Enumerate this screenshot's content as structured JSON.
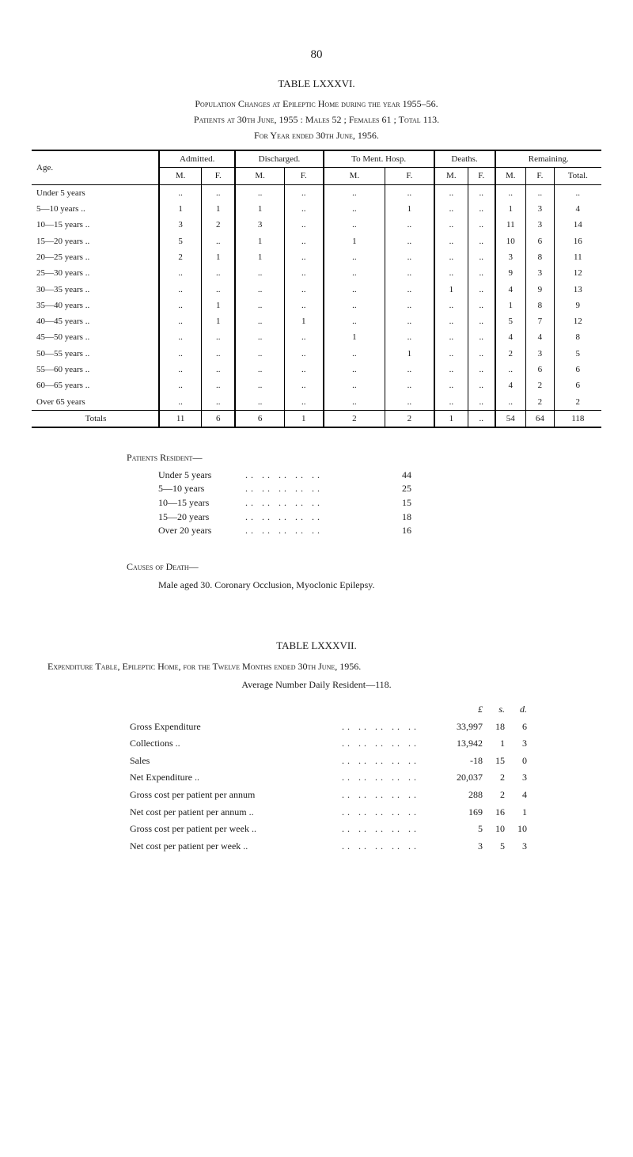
{
  "page_number": "80",
  "table1": {
    "label": "TABLE LXXXVI.",
    "heading1": "Population Changes at Epileptic Home during the year 1955–56.",
    "heading2": "Patients at 30th June, 1955 : Males 52 ; Females 61 ; Total 113.",
    "heading3": "For Year ended 30th June, 1956.",
    "col_age": "Age.",
    "groups": [
      "Admitted.",
      "Discharged.",
      "To Ment. Hosp.",
      "Deaths.",
      "Remaining."
    ],
    "sub": {
      "m": "M.",
      "f": "F.",
      "total": "Total."
    },
    "rows": [
      {
        "age": "Under 5 years",
        "cells": [
          "..",
          "..",
          "..",
          "..",
          "..",
          "..",
          "..",
          "..",
          "..",
          "..",
          ".."
        ]
      },
      {
        "age": "5—10 years ..",
        "cells": [
          "1",
          "1",
          "1",
          "..",
          "..",
          "1",
          "..",
          "..",
          "1",
          "3",
          "4"
        ]
      },
      {
        "age": "10—15 years ..",
        "cells": [
          "3",
          "2",
          "3",
          "..",
          "..",
          "..",
          "..",
          "..",
          "11",
          "3",
          "14"
        ]
      },
      {
        "age": "15—20 years ..",
        "cells": [
          "5",
          "..",
          "1",
          "..",
          "1",
          "..",
          "..",
          "..",
          "10",
          "6",
          "16"
        ]
      },
      {
        "age": "20—25 years ..",
        "cells": [
          "2",
          "1",
          "1",
          "..",
          "..",
          "..",
          "..",
          "..",
          "3",
          "8",
          "11"
        ]
      },
      {
        "age": "25—30 years ..",
        "cells": [
          "..",
          "..",
          "..",
          "..",
          "..",
          "..",
          "..",
          "..",
          "9",
          "3",
          "12"
        ]
      },
      {
        "age": "30—35 years ..",
        "cells": [
          "..",
          "..",
          "..",
          "..",
          "..",
          "..",
          "1",
          "..",
          "4",
          "9",
          "13"
        ]
      },
      {
        "age": "35—40 years ..",
        "cells": [
          "..",
          "1",
          "..",
          "..",
          "..",
          "..",
          "..",
          "..",
          "1",
          "8",
          "9"
        ]
      },
      {
        "age": "40—45 years ..",
        "cells": [
          "..",
          "1",
          "..",
          "1",
          "..",
          "..",
          "..",
          "..",
          "5",
          "7",
          "12"
        ]
      },
      {
        "age": "45—50 years ..",
        "cells": [
          "..",
          "..",
          "..",
          "..",
          "1",
          "..",
          "..",
          "..",
          "4",
          "4",
          "8"
        ]
      },
      {
        "age": "50—55 years ..",
        "cells": [
          "..",
          "..",
          "..",
          "..",
          "..",
          "1",
          "..",
          "..",
          "2",
          "3",
          "5"
        ]
      },
      {
        "age": "55—60 years ..",
        "cells": [
          "..",
          "..",
          "..",
          "..",
          "..",
          "..",
          "..",
          "..",
          "..",
          "6",
          "6"
        ]
      },
      {
        "age": "60—65 years ..",
        "cells": [
          "..",
          "..",
          "..",
          "..",
          "..",
          "..",
          "..",
          "..",
          "4",
          "2",
          "6"
        ]
      },
      {
        "age": "Over 65 years",
        "cells": [
          "..",
          "..",
          "..",
          "..",
          "..",
          "..",
          "..",
          "..",
          "..",
          "2",
          "2"
        ]
      }
    ],
    "totals_label": "Totals",
    "totals": [
      "11",
      "6",
      "6",
      "1",
      "2",
      "2",
      "1",
      "..",
      "54",
      "64",
      "118"
    ]
  },
  "residents": {
    "title": "Patients Resident—",
    "rows": [
      {
        "label": "Under 5 years",
        "val": "44"
      },
      {
        "label": "5—10 years",
        "val": "25"
      },
      {
        "label": "10—15 years",
        "val": "15"
      },
      {
        "label": "15—20 years",
        "val": "18"
      },
      {
        "label": "Over 20 years",
        "val": "16"
      }
    ]
  },
  "causes": {
    "title": "Causes of Death—",
    "text": "Male aged 30.  Coronary Occlusion, Myoclonic Epilepsy."
  },
  "table2": {
    "label": "TABLE LXXXVII.",
    "heading": "Expenditure Table, Epileptic Home, for the Twelve Months ended 30th June, 1956.",
    "avg": "Average Number Daily Resident—118.",
    "lsd": {
      "l": "£",
      "s": "s.",
      "d": "d."
    },
    "rows": [
      {
        "label": "Gross Expenditure",
        "l": "33,997",
        "s": "18",
        "d": "6"
      },
      {
        "label": "Collections ..",
        "l": "13,942",
        "s": "1",
        "d": "3"
      },
      {
        "label": "Sales",
        "l": "-18",
        "s": "15",
        "d": "0"
      },
      {
        "label": "Net Expenditure ..",
        "l": "20,037",
        "s": "2",
        "d": "3"
      },
      {
        "label": "Gross cost per patient per annum",
        "l": "288",
        "s": "2",
        "d": "4"
      },
      {
        "label": "Net cost per patient per annum ..",
        "l": "169",
        "s": "16",
        "d": "1"
      },
      {
        "label": "Gross cost per patient per week ..",
        "l": "5",
        "s": "10",
        "d": "10"
      },
      {
        "label": "Net cost per patient per week ..",
        "l": "3",
        "s": "5",
        "d": "3"
      }
    ]
  },
  "filler_dots": ".. .. .. .. .."
}
